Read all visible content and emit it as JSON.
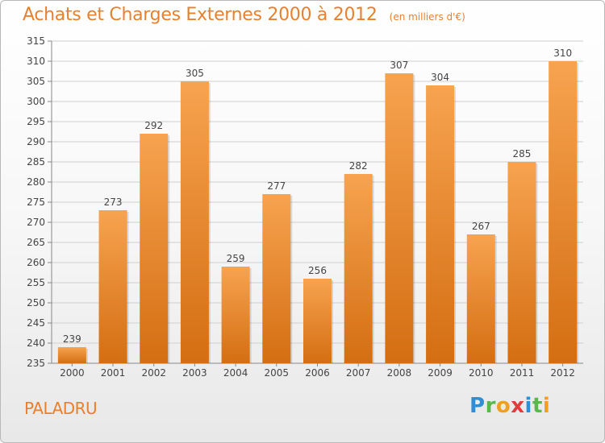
{
  "title": "Achats et Charges Externes 2000 à 2012",
  "subtitle": "(en milliers d'€)",
  "commune": "PALADRU",
  "logo": {
    "letters": [
      "P",
      "r",
      "o",
      "x",
      "i",
      "t",
      "i"
    ],
    "colors": [
      "#2f8fd6",
      "#56b948",
      "#f0a020",
      "#e23b3b",
      "#2f8fd6",
      "#56b948",
      "#f0a020"
    ]
  },
  "colors": {
    "bar_top": "#f7a350",
    "bar_bottom": "#d46e12",
    "title": "#e8802e",
    "grid": "#cfcfcf"
  },
  "chart_data": {
    "type": "bar",
    "title": "Achats et Charges Externes 2000 à 2012",
    "subtitle": "(en milliers d'€)",
    "categories": [
      "2000",
      "2001",
      "2002",
      "2003",
      "2004",
      "2005",
      "2006",
      "2007",
      "2008",
      "2009",
      "2010",
      "2011",
      "2012"
    ],
    "values": [
      239,
      273,
      292,
      305,
      259,
      277,
      256,
      282,
      307,
      304,
      267,
      285,
      310
    ],
    "ylim": [
      235,
      315
    ],
    "yticks": [
      235,
      240,
      245,
      250,
      255,
      260,
      265,
      270,
      275,
      280,
      285,
      290,
      295,
      300,
      305,
      310,
      315
    ],
    "grid": true,
    "data_labels": true
  }
}
